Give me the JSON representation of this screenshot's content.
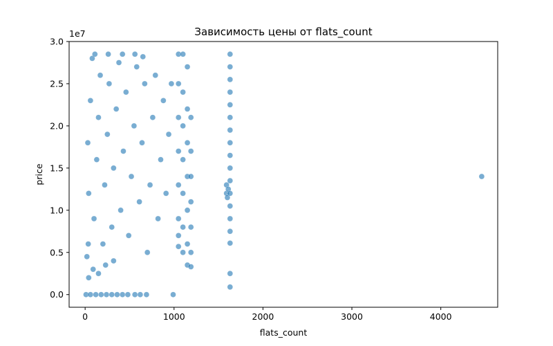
{
  "chart_data": {
    "type": "scatter",
    "title": "Зависимость цены от flats_count",
    "xlabel": "flats_count",
    "ylabel": "price",
    "y_offset_label": "1e7",
    "xlim": [
      -180,
      4640
    ],
    "ylim": [
      -0.15,
      3.0
    ],
    "y_scale_multiplier": 10000000,
    "xticks": [
      0,
      1000,
      2000,
      3000,
      4000
    ],
    "xtick_labels": [
      "0",
      "1000",
      "2000",
      "3000",
      "4000"
    ],
    "yticks": [
      0.0,
      0.5,
      1.0,
      1.5,
      2.0,
      2.5,
      3.0
    ],
    "ytick_labels": [
      "0.0",
      "0.5",
      "1.0",
      "1.5",
      "2.0",
      "2.5",
      "3.0"
    ],
    "grid": false,
    "color": "#1f77b4",
    "series": [
      {
        "values_note": "",
        "points": [
          [
            10,
            0.0
          ],
          [
            60,
            0.0
          ],
          [
            120,
            0.0
          ],
          [
            180,
            0.0
          ],
          [
            240,
            0.0
          ],
          [
            300,
            0.0
          ],
          [
            360,
            0.0
          ],
          [
            420,
            0.0
          ],
          [
            480,
            0.0
          ],
          [
            560,
            0.0
          ],
          [
            620,
            0.0
          ],
          [
            690,
            0.0
          ],
          [
            990,
            0.0
          ],
          [
            20,
            0.45
          ],
          [
            40,
            1.2
          ],
          [
            60,
            2.3
          ],
          [
            80,
            2.8
          ],
          [
            100,
            0.9
          ],
          [
            130,
            1.6
          ],
          [
            150,
            2.1
          ],
          [
            170,
            2.6
          ],
          [
            200,
            0.6
          ],
          [
            220,
            1.3
          ],
          [
            250,
            1.9
          ],
          [
            270,
            2.5
          ],
          [
            300,
            0.8
          ],
          [
            320,
            1.5
          ],
          [
            350,
            2.2
          ],
          [
            380,
            2.75
          ],
          [
            400,
            1.0
          ],
          [
            430,
            1.7
          ],
          [
            460,
            2.4
          ],
          [
            490,
            0.7
          ],
          [
            520,
            1.4
          ],
          [
            550,
            2.0
          ],
          [
            580,
            2.7
          ],
          [
            610,
            1.1
          ],
          [
            640,
            1.8
          ],
          [
            670,
            2.5
          ],
          [
            700,
            0.5
          ],
          [
            730,
            1.3
          ],
          [
            760,
            2.1
          ],
          [
            790,
            2.6
          ],
          [
            820,
            0.9
          ],
          [
            850,
            1.6
          ],
          [
            880,
            2.3
          ],
          [
            910,
            1.2
          ],
          [
            940,
            1.9
          ],
          [
            970,
            2.5
          ],
          [
            40,
            0.2
          ],
          [
            90,
            0.3
          ],
          [
            150,
            0.25
          ],
          [
            230,
            0.35
          ],
          [
            320,
            0.4
          ],
          [
            110,
            2.85
          ],
          [
            260,
            2.85
          ],
          [
            420,
            2.85
          ],
          [
            560,
            2.85
          ],
          [
            650,
            2.82
          ],
          [
            30,
            1.8
          ],
          [
            35,
            0.6
          ],
          [
            1050,
            2.85
          ],
          [
            1050,
            2.5
          ],
          [
            1050,
            2.1
          ],
          [
            1050,
            1.7
          ],
          [
            1050,
            1.3
          ],
          [
            1050,
            0.9
          ],
          [
            1050,
            0.7
          ],
          [
            1050,
            0.57
          ],
          [
            1100,
            2.85
          ],
          [
            1100,
            2.4
          ],
          [
            1100,
            2.0
          ],
          [
            1100,
            1.6
          ],
          [
            1100,
            1.2
          ],
          [
            1100,
            0.8
          ],
          [
            1100,
            0.5
          ],
          [
            1150,
            2.7
          ],
          [
            1150,
            2.2
          ],
          [
            1150,
            1.8
          ],
          [
            1150,
            1.4
          ],
          [
            1150,
            1.0
          ],
          [
            1150,
            0.6
          ],
          [
            1150,
            0.35
          ],
          [
            1190,
            2.1
          ],
          [
            1190,
            1.7
          ],
          [
            1190,
            1.4
          ],
          [
            1190,
            1.1
          ],
          [
            1190,
            0.8
          ],
          [
            1190,
            0.5
          ],
          [
            1190,
            0.33
          ],
          [
            1590,
            1.3
          ],
          [
            1590,
            1.2
          ],
          [
            1600,
            1.15
          ],
          [
            1610,
            1.25
          ],
          [
            1630,
            2.85
          ],
          [
            1630,
            2.7
          ],
          [
            1630,
            2.55
          ],
          [
            1630,
            2.4
          ],
          [
            1630,
            2.25
          ],
          [
            1630,
            2.1
          ],
          [
            1630,
            1.95
          ],
          [
            1630,
            1.8
          ],
          [
            1630,
            1.65
          ],
          [
            1630,
            1.5
          ],
          [
            1630,
            1.35
          ],
          [
            1630,
            1.2
          ],
          [
            1630,
            1.05
          ],
          [
            1630,
            0.9
          ],
          [
            1630,
            0.75
          ],
          [
            1630,
            0.61
          ],
          [
            1630,
            0.25
          ],
          [
            1630,
            0.09
          ],
          [
            4460,
            1.4
          ]
        ]
      }
    ]
  }
}
